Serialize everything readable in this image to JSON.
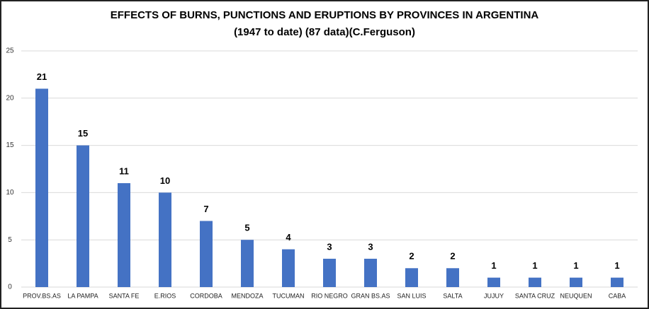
{
  "chart_data": {
    "type": "bar",
    "title": "EFFECTS OF BURNS, PUNCTIONS AND ERUPTIONS BY PROVINCES IN ARGENTINA",
    "subtitle": "(1947 to date) (87 data)(C.Ferguson)",
    "categories": [
      "PROV.BS.AS",
      "LA PAMPA",
      "SANTA FE",
      "E.RIOS",
      "CORDOBA",
      "MENDOZA",
      "TUCUMAN",
      "RIO NEGRO",
      "GRAN BS.AS",
      "SAN LUIS",
      "SALTA",
      "JUJUY",
      "SANTA CRUZ",
      "NEUQUEN",
      "CABA"
    ],
    "values": [
      21,
      15,
      11,
      10,
      7,
      5,
      4,
      3,
      3,
      2,
      2,
      1,
      1,
      1,
      1
    ],
    "color": "#4472c4",
    "ylim": [
      0,
      25
    ],
    "yticks": [
      0,
      5,
      10,
      15,
      20,
      25
    ],
    "grid": true
  }
}
